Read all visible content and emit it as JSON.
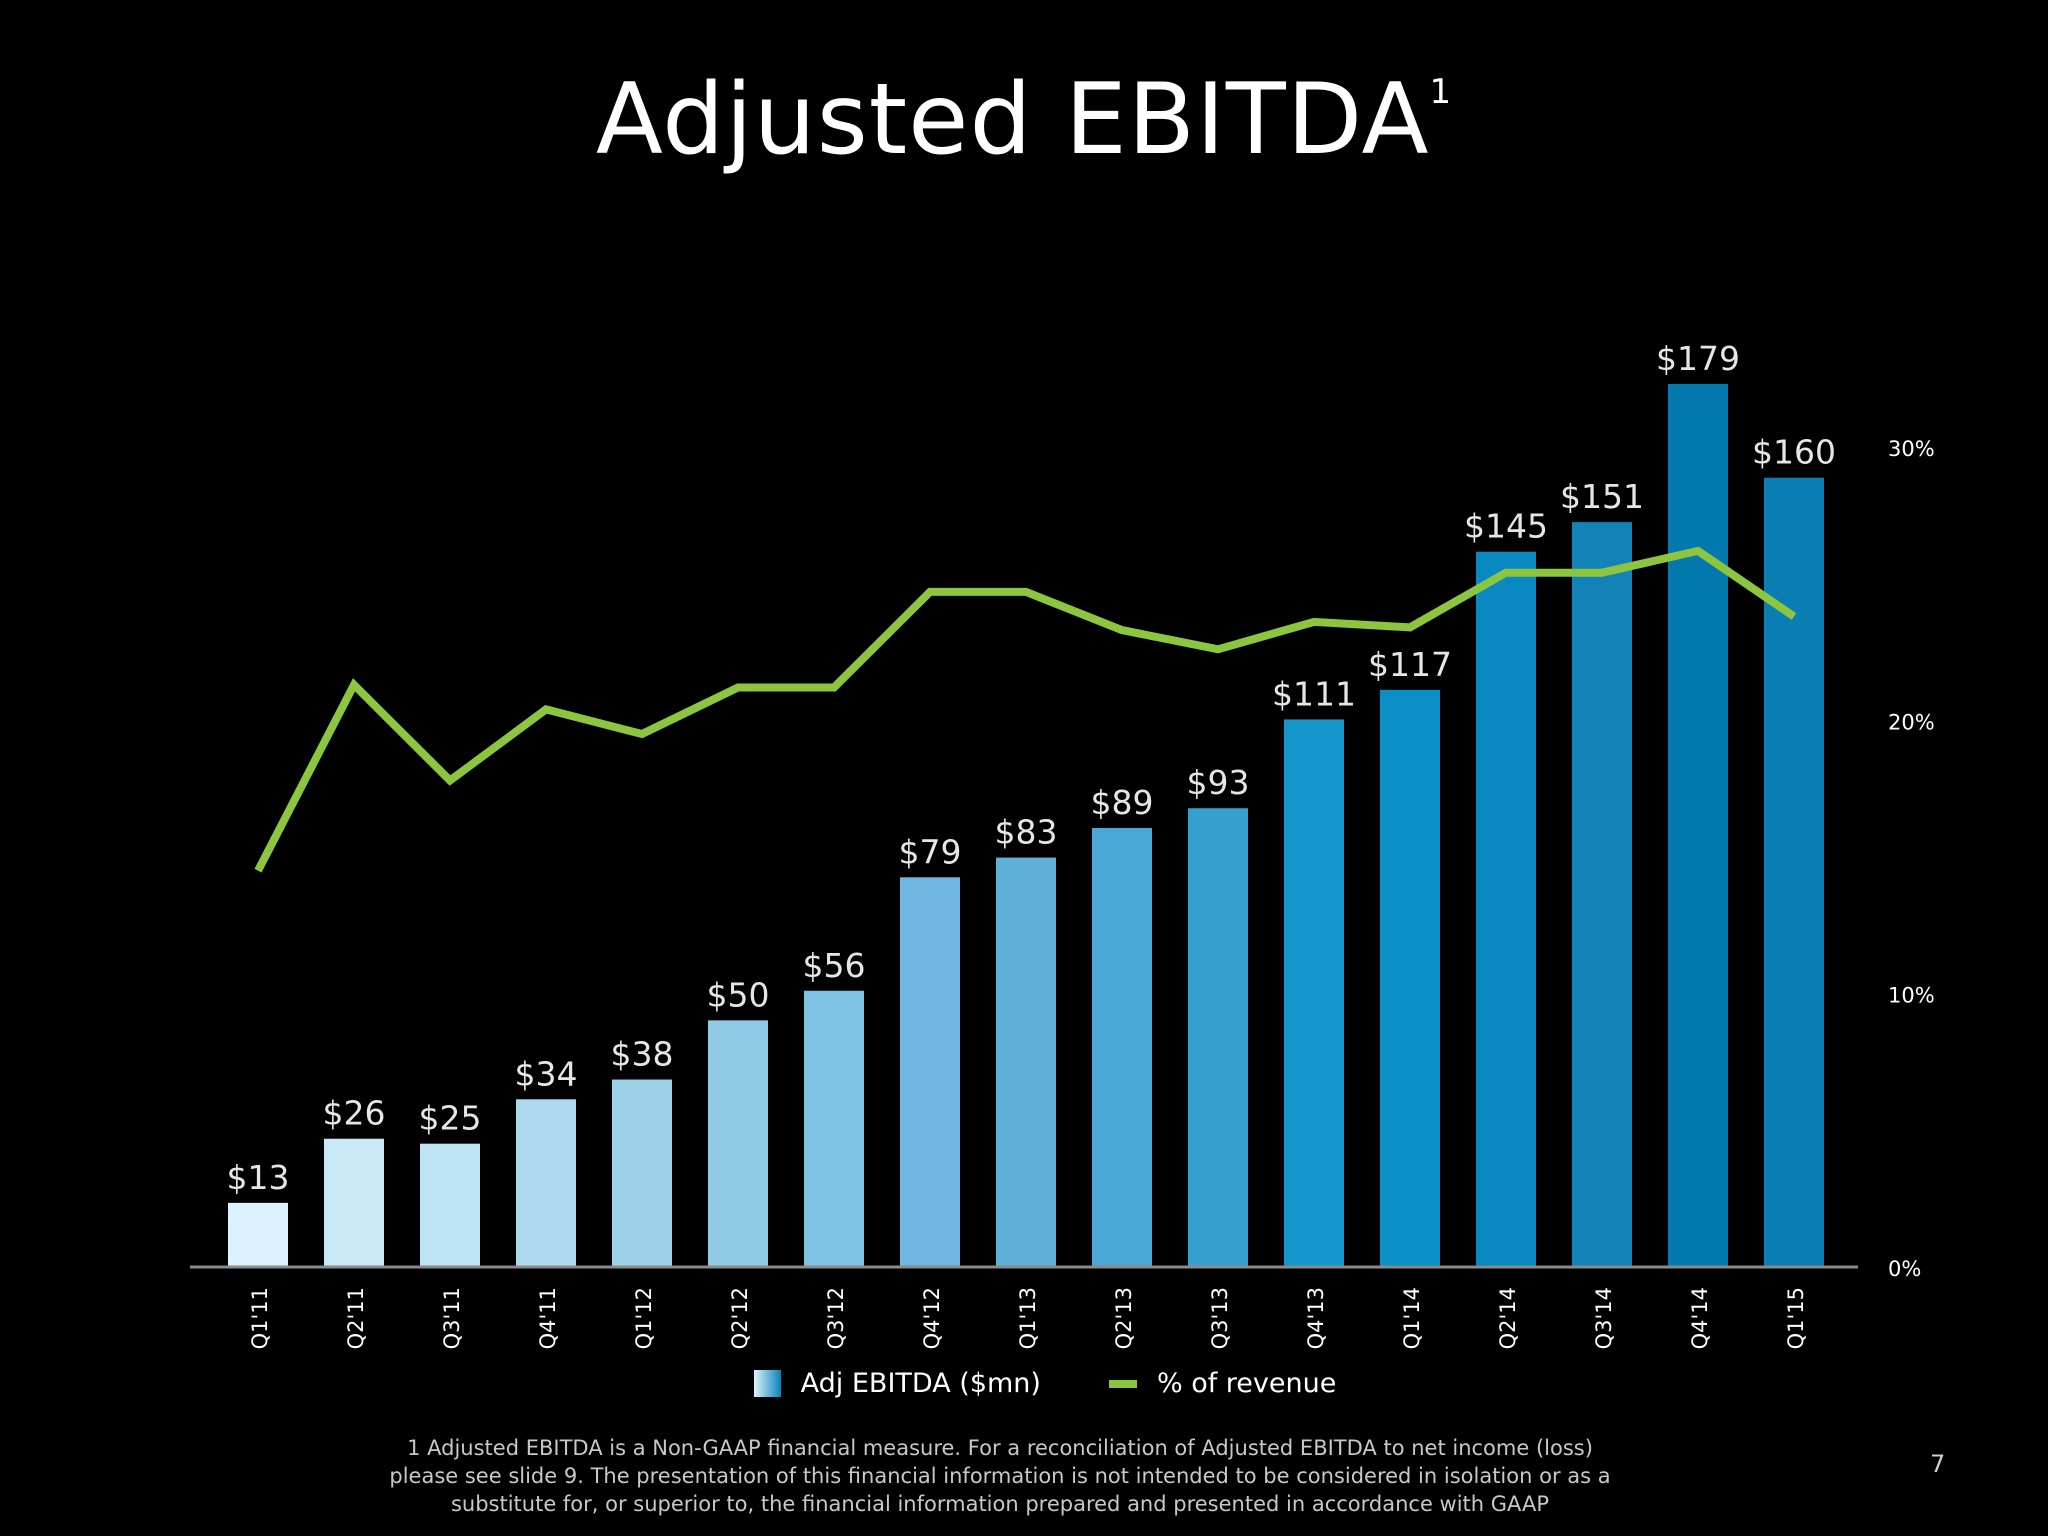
{
  "slide": {
    "title": "Adjusted EBITDA",
    "title_superscript": "1",
    "footnote": "1 Adjusted EBITDA is a Non-GAAP financial measure. For a reconciliation of Adjusted EBITDA to net income (loss) please see slide 9. The presentation of this financial information is not intended to be considered in isolation or as a substitute for, or superior to, the financial information prepared and presented in accordance with GAAP",
    "page_number": "7"
  },
  "legend": {
    "bar_label": "Adj EBITDA ($mn)",
    "line_label": "% of revenue"
  },
  "chart_data": {
    "type": "bar",
    "title": "Adjusted EBITDA",
    "categories": [
      "Q1'11",
      "Q2'11",
      "Q3'11",
      "Q4'11",
      "Q1'12",
      "Q2'12",
      "Q3'12",
      "Q4'12",
      "Q1'13",
      "Q2'13",
      "Q3'13",
      "Q4'13",
      "Q1'14",
      "Q2'14",
      "Q3'14",
      "Q4'14",
      "Q1'15"
    ],
    "series": [
      {
        "name": "Adj EBITDA ($mn)",
        "type": "bar",
        "axis": "left",
        "values": [
          13,
          26,
          25,
          34,
          38,
          50,
          56,
          79,
          83,
          89,
          93,
          111,
          117,
          145,
          151,
          179,
          160
        ],
        "value_labels": [
          "$13",
          "$26",
          "$25",
          "$34",
          "$38",
          "$50",
          "$56",
          "$79",
          "$83",
          "$89",
          "$93",
          "$111",
          "$117",
          "$145",
          "$151",
          "$179",
          "$160"
        ],
        "colors": [
          "#dbf1fb",
          "#c9e9f7",
          "#bde3f4",
          "#add9ee",
          "#9dd2e9",
          "#8fcbe6",
          "#7fc3e4",
          "#6db7e0",
          "#5eb0d7",
          "#4aa8d6",
          "#35a0d0",
          "#1597cc",
          "#0b8fc7",
          "#0a88c1",
          "#1382b7",
          "#0479ad",
          "#0a7db2"
        ]
      },
      {
        "name": "% of revenue",
        "type": "line",
        "axis": "right",
        "color": "#8cc63f",
        "values": [
          14.5,
          21.3,
          17.8,
          20.4,
          19.5,
          21.2,
          21.2,
          24.7,
          24.7,
          23.3,
          22.6,
          23.6,
          23.4,
          25.4,
          25.4,
          26.2,
          23.8
        ]
      }
    ],
    "y_left_range": [
      0,
      200
    ],
    "y_right_range": [
      0,
      30
    ],
    "y_right_ticks": [
      "0%",
      "10%",
      "20%",
      "30%"
    ],
    "grid": false,
    "legend_position": "bottom"
  }
}
